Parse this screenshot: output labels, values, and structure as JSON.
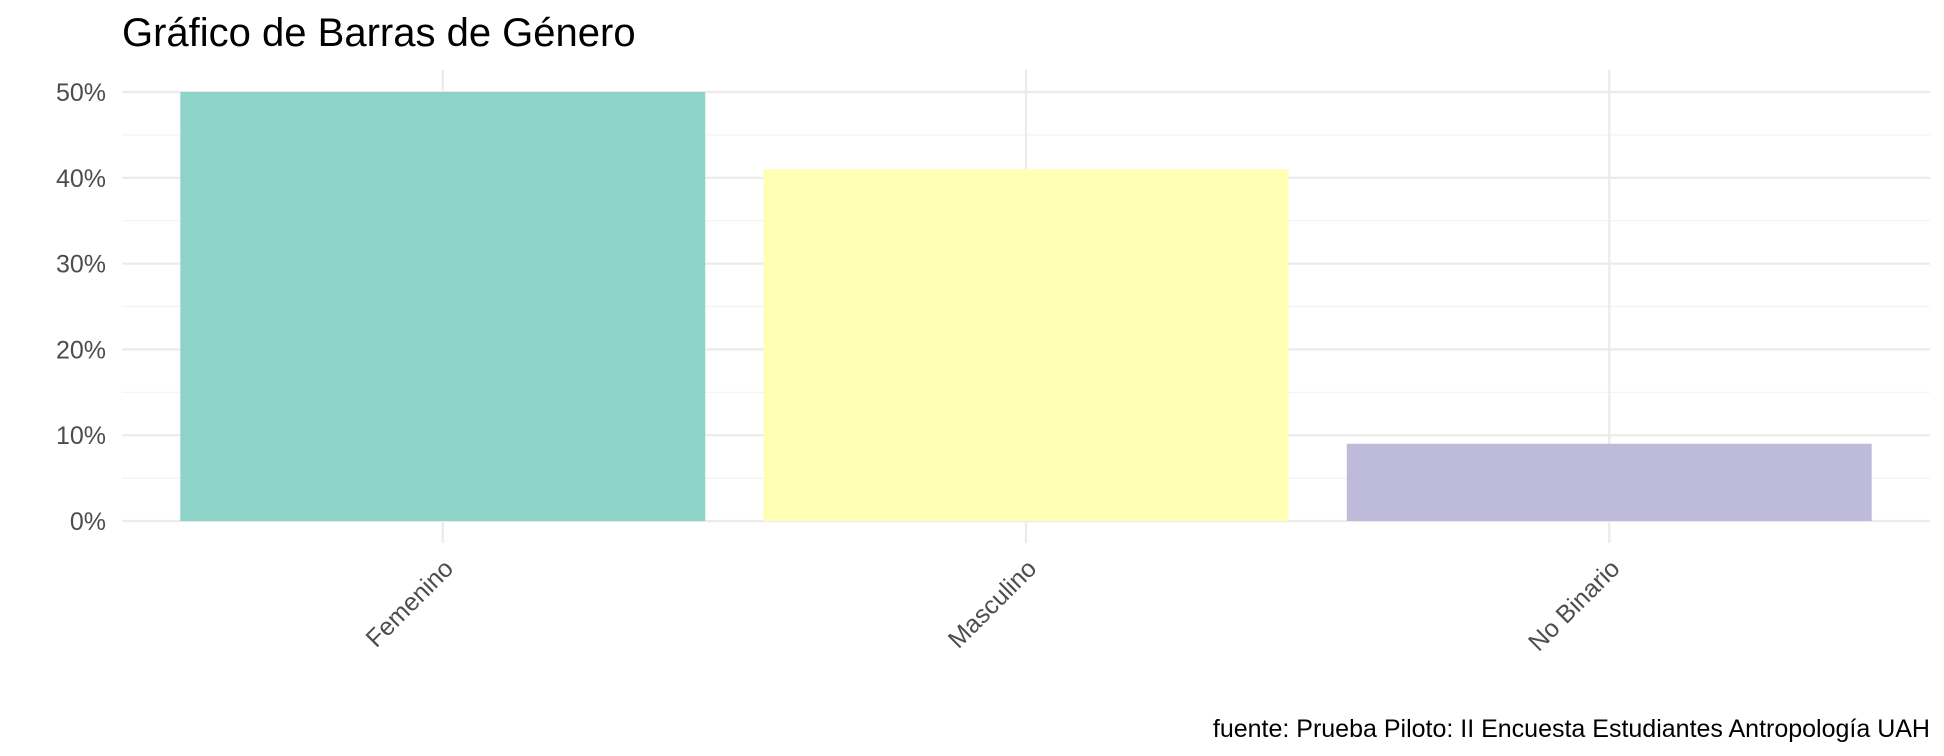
{
  "title": "Gráfico de Barras de Género",
  "caption": "fuente: Prueba Piloto: II Encuesta Estudiantes Antropología UAH",
  "colors": {
    "background": "#ffffff",
    "grid_major": "#ebebeb",
    "grid_minor": "#f2f2f2",
    "tick_text": "#4d4d4d",
    "bar_femenino": "#8dd3c7",
    "bar_masculino": "#ffffb3",
    "bar_no_binario": "#bebada"
  },
  "chart_data": {
    "type": "bar",
    "title": "Gráfico de Barras de Género",
    "caption": "fuente: Prueba Piloto: II Encuesta Estudiantes Antropología UAH",
    "xlabel": "",
    "ylabel": "",
    "categories": [
      "Femenino",
      "Masculino",
      "No Binario"
    ],
    "values": [
      50,
      41,
      9
    ],
    "unit": "%",
    "colors": [
      "#8dd3c7",
      "#ffffb3",
      "#bebada"
    ],
    "ylim": [
      0,
      50
    ],
    "yticks": [
      0,
      10,
      20,
      30,
      40,
      50
    ],
    "ytick_labels": [
      "0%",
      "10%",
      "20%",
      "30%",
      "40%",
      "50%"
    ],
    "xtick_rotation": 45,
    "grid": true,
    "legend": "none"
  }
}
